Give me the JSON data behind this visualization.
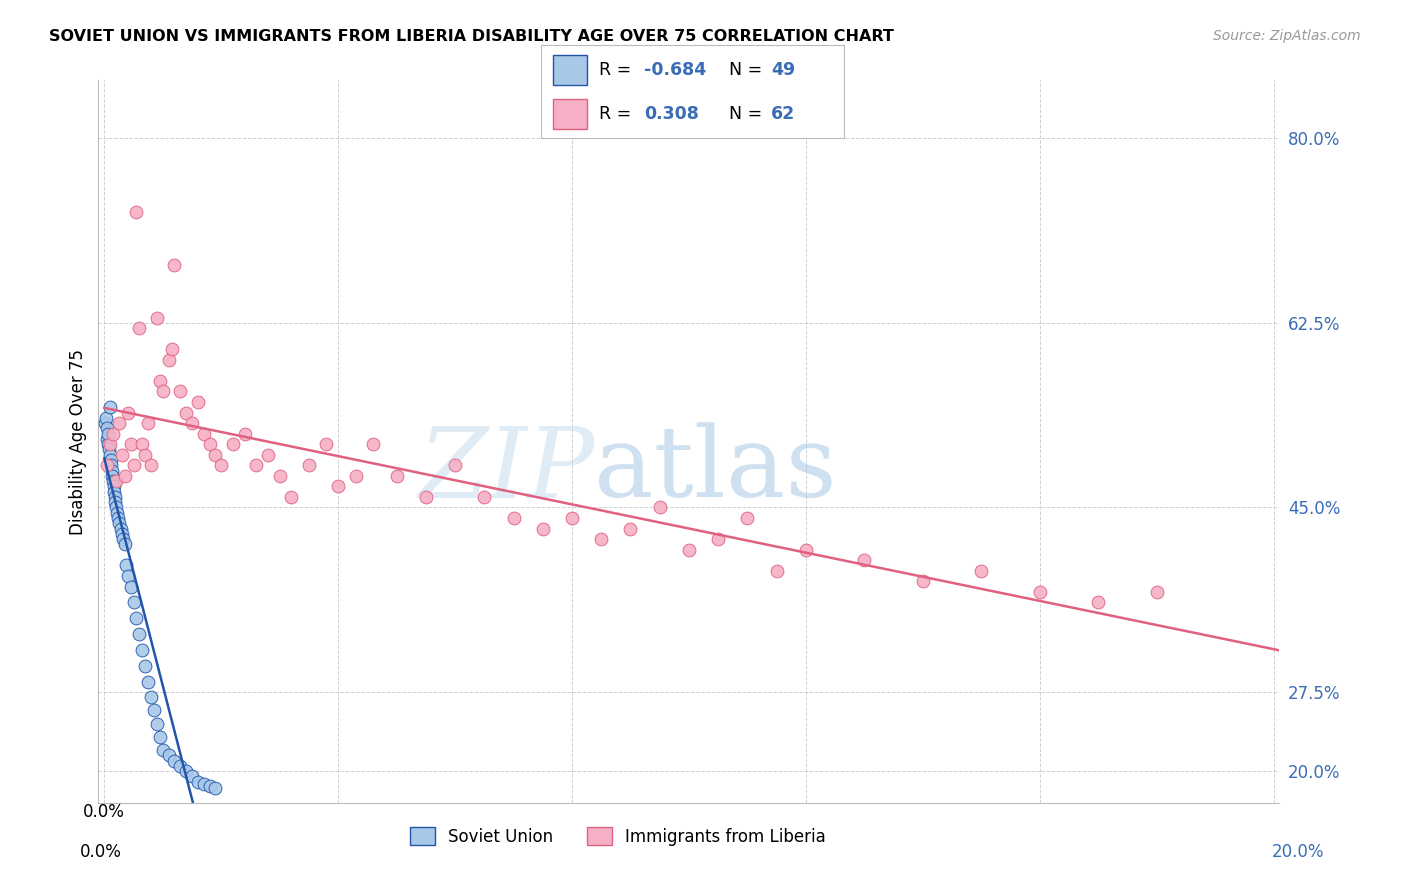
{
  "title": "SOVIET UNION VS IMMIGRANTS FROM LIBERIA DISABILITY AGE OVER 75 CORRELATION CHART",
  "source": "Source: ZipAtlas.com",
  "ylabel": "Disability Age Over 75",
  "yticks": [
    0.2,
    0.275,
    0.45,
    0.625,
    0.8
  ],
  "ytick_labels": [
    "20.0%",
    "27.5%",
    "45.0%",
    "62.5%",
    "80.0%"
  ],
  "xlim": [
    -0.001,
    0.201
  ],
  "ylim": [
    0.17,
    0.855
  ],
  "color_soviet": "#a8c8e8",
  "color_liberia": "#f5b0c5",
  "line_color_soviet": "#2255aa",
  "line_color_liberia": "#e06080",
  "r_soviet": "-0.684",
  "n_soviet": "49",
  "r_liberia": "0.308",
  "n_liberia": "62",
  "soviet_x": [
    0.0002,
    0.0003,
    0.0004,
    0.0005,
    0.0006,
    0.0007,
    0.0008,
    0.0009,
    0.001,
    0.0011,
    0.0012,
    0.0013,
    0.0014,
    0.0015,
    0.0016,
    0.0017,
    0.0018,
    0.0019,
    0.002,
    0.0022,
    0.0024,
    0.0026,
    0.0028,
    0.003,
    0.0032,
    0.0035,
    0.0038,
    0.004,
    0.0045,
    0.005,
    0.0055,
    0.006,
    0.0065,
    0.007,
    0.0075,
    0.008,
    0.0085,
    0.009,
    0.0095,
    0.01,
    0.011,
    0.012,
    0.013,
    0.014,
    0.015,
    0.016,
    0.017,
    0.018,
    0.019
  ],
  "soviet_y": [
    0.53,
    0.535,
    0.525,
    0.515,
    0.51,
    0.52,
    0.505,
    0.545,
    0.5,
    0.495,
    0.49,
    0.485,
    0.48,
    0.475,
    0.47,
    0.465,
    0.46,
    0.455,
    0.45,
    0.445,
    0.44,
    0.435,
    0.43,
    0.425,
    0.42,
    0.415,
    0.395,
    0.385,
    0.375,
    0.36,
    0.345,
    0.33,
    0.315,
    0.3,
    0.285,
    0.27,
    0.258,
    0.245,
    0.232,
    0.22,
    0.215,
    0.21,
    0.205,
    0.2,
    0.195,
    0.19,
    0.188,
    0.186,
    0.184
  ],
  "liberia_x": [
    0.0005,
    0.001,
    0.0015,
    0.002,
    0.0025,
    0.003,
    0.0035,
    0.004,
    0.0045,
    0.005,
    0.0055,
    0.006,
    0.0065,
    0.007,
    0.0075,
    0.008,
    0.009,
    0.0095,
    0.01,
    0.011,
    0.0115,
    0.012,
    0.013,
    0.014,
    0.015,
    0.016,
    0.017,
    0.018,
    0.019,
    0.02,
    0.022,
    0.024,
    0.026,
    0.028,
    0.03,
    0.032,
    0.035,
    0.038,
    0.04,
    0.043,
    0.046,
    0.05,
    0.055,
    0.06,
    0.065,
    0.07,
    0.075,
    0.08,
    0.085,
    0.09,
    0.095,
    0.1,
    0.105,
    0.11,
    0.115,
    0.12,
    0.13,
    0.14,
    0.15,
    0.16,
    0.17,
    0.18
  ],
  "liberia_y": [
    0.49,
    0.51,
    0.52,
    0.475,
    0.53,
    0.5,
    0.48,
    0.54,
    0.51,
    0.49,
    0.73,
    0.62,
    0.51,
    0.5,
    0.53,
    0.49,
    0.63,
    0.57,
    0.56,
    0.59,
    0.6,
    0.68,
    0.56,
    0.54,
    0.53,
    0.55,
    0.52,
    0.51,
    0.5,
    0.49,
    0.51,
    0.52,
    0.49,
    0.5,
    0.48,
    0.46,
    0.49,
    0.51,
    0.47,
    0.48,
    0.51,
    0.48,
    0.46,
    0.49,
    0.46,
    0.44,
    0.43,
    0.44,
    0.42,
    0.43,
    0.45,
    0.41,
    0.42,
    0.44,
    0.39,
    0.41,
    0.4,
    0.38,
    0.39,
    0.37,
    0.36,
    0.37
  ],
  "watermark_zip": "ZIP",
  "watermark_atlas": "atlas",
  "background_color": "#ffffff",
  "grid_color": "#cccccc"
}
